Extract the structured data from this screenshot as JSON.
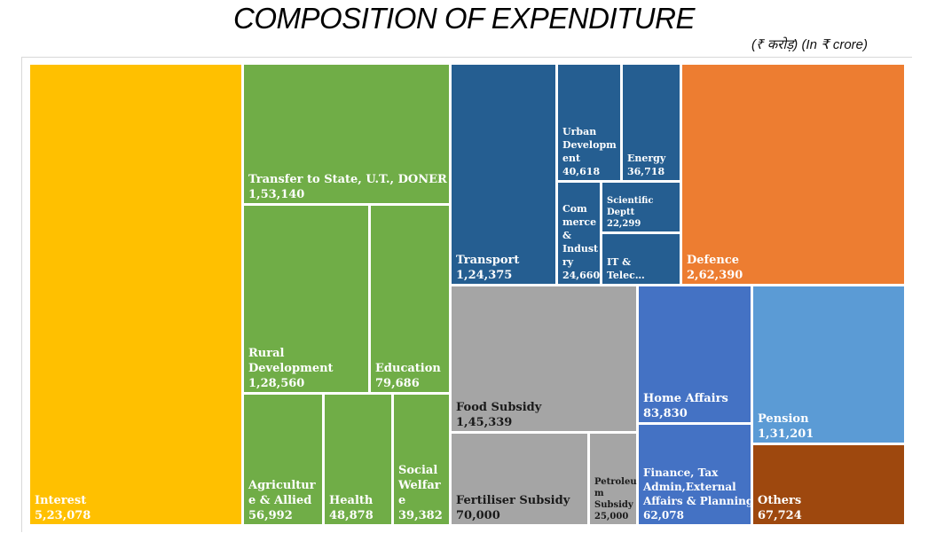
{
  "header": {
    "title": "COMPOSITION OF EXPENDITURE",
    "unit_note": "(₹ करोड़)  (In ₹ crore)"
  },
  "chart_data": {
    "type": "treemap",
    "unit": "₹ crore",
    "items": [
      {
        "name": "Interest",
        "label_lines": [
          "Interest"
        ],
        "value_label": "5,23,078",
        "value": 523078,
        "color": "#FFC000"
      },
      {
        "name": "Transfer to State, U.T., DONER",
        "label_lines": [
          "Transfer to State, U.T., DONER"
        ],
        "value_label": "1,53,140",
        "value": 153140,
        "color": "#70AD47"
      },
      {
        "name": "Rural Development",
        "label_lines": [
          "Rural",
          "Development"
        ],
        "value_label": "1,28,560",
        "value": 128560,
        "color": "#70AD47"
      },
      {
        "name": "Education",
        "label_lines": [
          "Education"
        ],
        "value_label": "79,686",
        "value": 79686,
        "color": "#70AD47"
      },
      {
        "name": "Agriculture & Allied",
        "label_lines": [
          "Agricultur",
          "e & Allied"
        ],
        "value_label": "56,992",
        "value": 56992,
        "color": "#70AD47"
      },
      {
        "name": "Health",
        "label_lines": [
          "Health"
        ],
        "value_label": "48,878",
        "value": 48878,
        "color": "#70AD47"
      },
      {
        "name": "Social Welfare",
        "label_lines": [
          "Social",
          "Welfar",
          "e"
        ],
        "value_label": "39,382",
        "value": 39382,
        "color": "#70AD47"
      },
      {
        "name": "Transport",
        "label_lines": [
          "Transport"
        ],
        "value_label": "1,24,375",
        "value": 124375,
        "color": "#255E91"
      },
      {
        "name": "Urban Development",
        "label_lines": [
          "Urban",
          "Developm",
          "ent"
        ],
        "value_label": "40,618",
        "value": 40618,
        "color": "#255E91"
      },
      {
        "name": "Energy",
        "label_lines": [
          "Energy"
        ],
        "value_label": "36,718",
        "value": 36718,
        "color": "#255E91"
      },
      {
        "name": "Commerce & Industry",
        "label_lines": [
          "Com",
          "merce",
          "&",
          "Indust",
          "ry"
        ],
        "value_label": "24,660",
        "value": 24660,
        "color": "#255E91"
      },
      {
        "name": "Scientific Deptt",
        "label_lines": [
          "Scientific",
          "Deptt"
        ],
        "value_label": "22,299",
        "value": 22299,
        "color": "#255E91"
      },
      {
        "name": "IT & Telecom",
        "label_lines": [
          "IT &",
          "Telec…"
        ],
        "value_label": "",
        "value": null,
        "color": "#255E91"
      },
      {
        "name": "Defence",
        "label_lines": [
          "Defence"
        ],
        "value_label": "2,62,390",
        "value": 262390,
        "color": "#ED7D31"
      },
      {
        "name": "Food Subsidy",
        "label_lines": [
          "Food Subsidy"
        ],
        "value_label": "1,45,339",
        "value": 145339,
        "color": "#A5A5A5"
      },
      {
        "name": "Fertiliser Subsidy",
        "label_lines": [
          "Fertiliser Subsidy"
        ],
        "value_label": "70,000",
        "value": 70000,
        "color": "#A5A5A5"
      },
      {
        "name": "Petroleum Subsidy",
        "label_lines": [
          "Petroleu",
          "m",
          "Subsidy"
        ],
        "value_label": "25,000",
        "value": 25000,
        "color": "#A5A5A5"
      },
      {
        "name": "Home Affairs",
        "label_lines": [
          "Home Affairs"
        ],
        "value_label": "83,830",
        "value": 83830,
        "color": "#4472C4"
      },
      {
        "name": "Finance, Tax Admin, External Affairs & Planning",
        "label_lines": [
          "Finance, Tax",
          "Admin,External",
          "Affairs & Planning"
        ],
        "value_label": "62,078",
        "value": 62078,
        "color": "#4472C4"
      },
      {
        "name": "Pension",
        "label_lines": [
          "Pension"
        ],
        "value_label": "1,31,201",
        "value": 131201,
        "color": "#5B9BD5"
      },
      {
        "name": "Others",
        "label_lines": [
          "Others"
        ],
        "value_label": "67,724",
        "value": 67724,
        "color": "#9E480E"
      }
    ]
  }
}
